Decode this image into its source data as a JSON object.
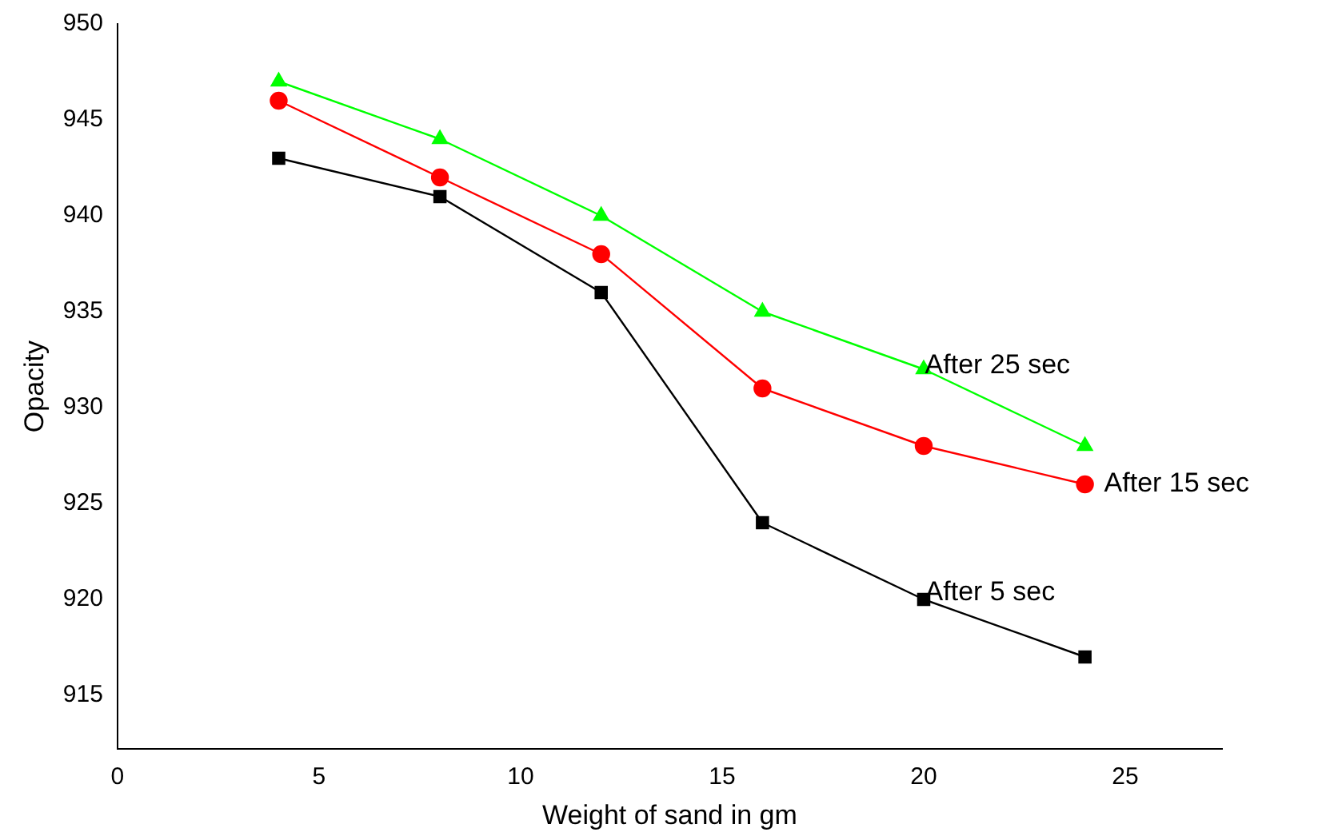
{
  "chart_data": {
    "type": "line",
    "xlabel": "Weight of sand in gm",
    "ylabel": "Opacity",
    "x": [
      4,
      8,
      12,
      16,
      20,
      24
    ],
    "series": [
      {
        "name": "After 5 sec",
        "color": "#000000",
        "marker": "square",
        "values": [
          943,
          941,
          936,
          924,
          920,
          917
        ]
      },
      {
        "name": "After 15 sec",
        "color": "#ff0000",
        "marker": "circle",
        "values": [
          946,
          942,
          938,
          931,
          928,
          926
        ]
      },
      {
        "name": "After 25 sec",
        "color": "#00ff00",
        "marker": "triangle",
        "values": [
          947,
          944,
          940,
          935,
          932,
          928
        ]
      }
    ],
    "xlim": [
      0,
      27.4
    ],
    "xticks": [
      0,
      5,
      10,
      15,
      20,
      25
    ],
    "ylim": [
      912.2,
      950
    ],
    "yticks": [
      915,
      920,
      925,
      930,
      935,
      940,
      945,
      950
    ],
    "grid": false,
    "legend": false
  }
}
